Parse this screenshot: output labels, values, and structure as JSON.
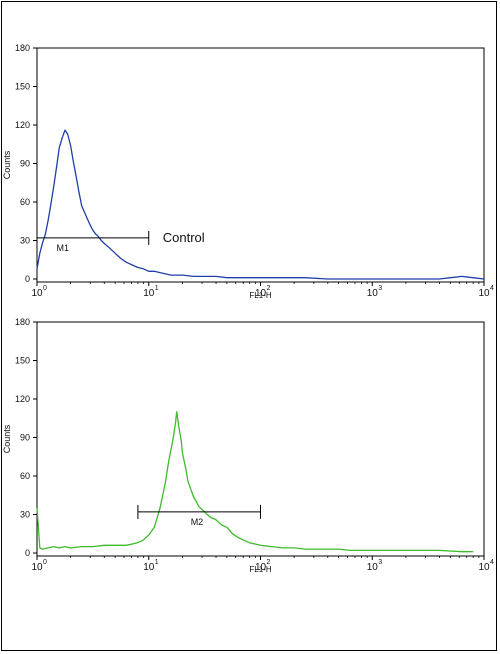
{
  "chart_data": [
    {
      "type": "histogram",
      "x_scale": "log",
      "xlabel": "FL1-H",
      "ylabel": "Counts",
      "xlim": [
        1,
        10000
      ],
      "ylim": [
        0,
        180
      ],
      "x_ticks": [
        "10",
        "10",
        "10",
        "10",
        "10"
      ],
      "x_tick_exponents": [
        "0",
        "1",
        "2",
        "3",
        "4"
      ],
      "y_ticks": [
        "0",
        "30",
        "60",
        "90",
        "120",
        "150",
        "180"
      ],
      "line_color": "#1f3fa8",
      "gate": {
        "label": "M1",
        "x_from": 1.0,
        "x_to": 10.0,
        "y": 32
      },
      "annotation": "Control",
      "series": [
        {
          "x": [
            1.0,
            1.06,
            1.12,
            1.19,
            1.26,
            1.33,
            1.41,
            1.5,
            1.58,
            1.68,
            1.78,
            1.88,
            2.0,
            2.11,
            2.24,
            2.37,
            2.51,
            2.66,
            2.82,
            2.99,
            3.16,
            3.35,
            3.55,
            3.76,
            3.98,
            4.47,
            5.01,
            5.62,
            6.31,
            7.08,
            7.94,
            8.91,
            10.0,
            11.2,
            12.6,
            14.1,
            15.8,
            17.8,
            20.0,
            25.1,
            31.6,
            39.8,
            50.1,
            63.1,
            79.4,
            100,
            158,
            251,
            398,
            631,
            1000,
            1585,
            2512,
            3981,
            5012,
            6310,
            7943,
            10000
          ],
          "y": [
            8,
            20,
            28,
            35,
            46,
            58,
            72,
            88,
            102,
            110,
            116,
            113,
            104,
            92,
            80,
            68,
            57,
            52,
            47,
            42,
            38,
            35,
            33,
            30,
            28,
            24,
            20,
            16,
            13,
            11,
            9,
            8,
            6,
            6,
            5,
            4,
            3,
            3,
            3,
            2,
            2,
            2,
            1,
            1,
            1,
            1,
            1,
            1,
            0,
            0,
            0,
            0,
            0,
            0,
            1,
            2,
            1,
            0
          ]
        }
      ]
    },
    {
      "type": "histogram",
      "x_scale": "log",
      "xlabel": "FL1-H",
      "ylabel": "Counts",
      "xlim": [
        1,
        10000
      ],
      "ylim": [
        0,
        180
      ],
      "x_ticks": [
        "10",
        "10",
        "10",
        "10",
        "10"
      ],
      "x_tick_exponents": [
        "0",
        "1",
        "2",
        "3",
        "4"
      ],
      "y_ticks": [
        "0",
        "30",
        "60",
        "90",
        "120",
        "150",
        "180"
      ],
      "line_color": "#3dbb2a",
      "gate": {
        "label": "M2",
        "x_from": 8.0,
        "x_to": 100,
        "y": 32
      },
      "series": [
        {
          "x": [
            1.0,
            1.03,
            1.06,
            1.12,
            1.26,
            1.41,
            1.58,
            1.78,
            2.0,
            2.51,
            3.16,
            3.98,
            5.01,
            6.31,
            7.94,
            8.91,
            10.0,
            11.2,
            12.6,
            14.1,
            15.1,
            15.8,
            16.6,
            17.4,
            17.8,
            18.6,
            19.5,
            20.0,
            21.4,
            22.4,
            23.7,
            25.1,
            28.2,
            31.6,
            35.5,
            39.8,
            44.7,
            50.1,
            56.2,
            63.1,
            70.8,
            79.4,
            89.1,
            100,
            126,
            158,
            200,
            251,
            316,
            398,
            501,
            631,
            794,
            1000,
            1585,
            2512,
            3981,
            6310,
            8000
          ],
          "y": [
            35,
            20,
            4,
            3,
            4,
            5,
            4,
            5,
            4,
            5,
            5,
            6,
            6,
            6,
            8,
            10,
            14,
            20,
            35,
            55,
            72,
            80,
            90,
            102,
            110,
            98,
            88,
            78,
            66,
            56,
            50,
            44,
            36,
            32,
            28,
            26,
            22,
            20,
            15,
            12,
            10,
            8,
            7,
            6,
            5,
            4,
            4,
            3,
            3,
            3,
            3,
            2,
            2,
            2,
            2,
            2,
            2,
            1,
            1
          ]
        }
      ]
    }
  ]
}
